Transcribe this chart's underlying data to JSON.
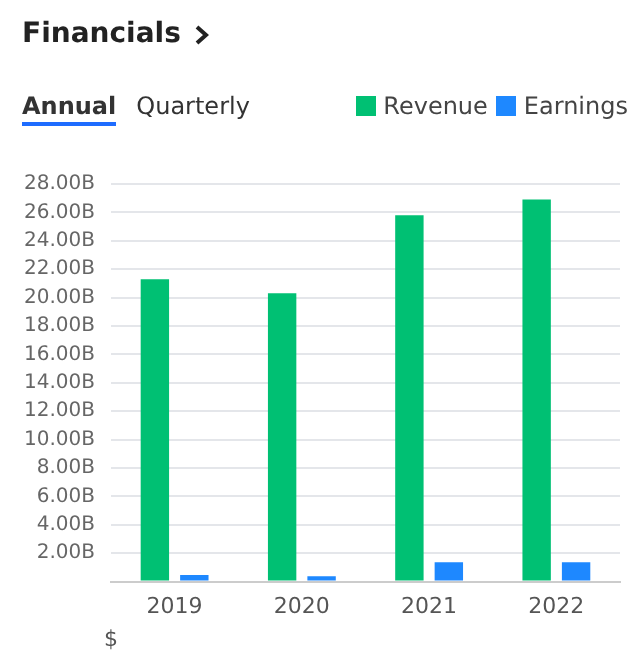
{
  "chart_data": {
    "type": "bar",
    "title": "Financials",
    "annotations": [
      "Annual",
      "Quarterly"
    ],
    "ylabel": "$",
    "categories": [
      "2019",
      "2020",
      "2021",
      "2022"
    ],
    "series": [
      {
        "name": "Revenue",
        "color": "#00c073",
        "values": [
          21.3,
          20.3,
          25.8,
          26.9
        ]
      },
      {
        "name": "Earnings",
        "color": "#1e88ff",
        "values": [
          0.47,
          0.38,
          1.36,
          1.36
        ]
      }
    ],
    "ylim": [
      0,
      28
    ],
    "yticks": [
      {
        "value": 0,
        "label": null
      },
      {
        "value": 2,
        "label": "2.00B"
      },
      {
        "value": 4,
        "label": "4.00B"
      },
      {
        "value": 6,
        "label": "6.00B"
      },
      {
        "value": 8,
        "label": "8.00B"
      },
      {
        "value": 10,
        "label": "10.00B"
      },
      {
        "value": 12,
        "label": "12.00B"
      },
      {
        "value": 14,
        "label": "14.00B"
      },
      {
        "value": 16,
        "label": "16.00B"
      },
      {
        "value": 18,
        "label": "18.00B"
      },
      {
        "value": 20,
        "label": "20.00B"
      },
      {
        "value": 22,
        "label": "22.00B"
      },
      {
        "value": 24,
        "label": "24.00B"
      },
      {
        "value": 26,
        "label": "26.00B"
      },
      {
        "value": 28,
        "label": "28.00B"
      }
    ],
    "grid": "y",
    "legend": "top right"
  }
}
